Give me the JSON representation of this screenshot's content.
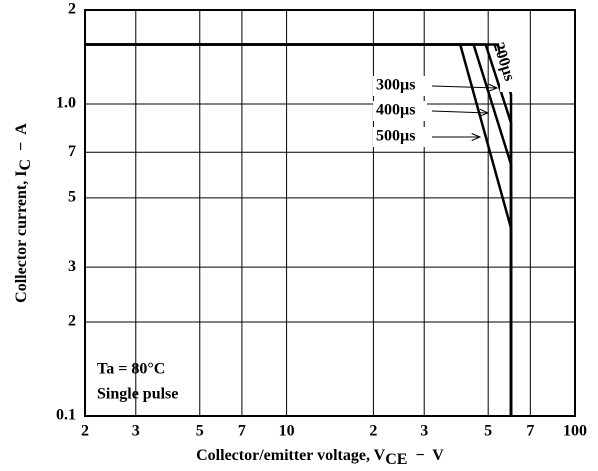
{
  "chart_data": {
    "type": "line",
    "x_label": {
      "text": "Collector/emitter voltage, V",
      "sub": "CE",
      "suffix": "  −  V"
    },
    "y_label": {
      "text": "Collector current, I",
      "sub": "C",
      "suffix": "  −  A"
    },
    "log_x": true,
    "log_y": true,
    "grid": true,
    "xlim": [
      2,
      100
    ],
    "ylim": [
      0.1,
      2
    ],
    "xticks": [
      2,
      3,
      5,
      7,
      10,
      {
        "value": 20,
        "label": "2"
      },
      {
        "value": 30,
        "label": "3"
      },
      {
        "value": 50,
        "label": "5"
      },
      {
        "value": 70,
        "label": "7"
      },
      100
    ],
    "yticks": [
      0.1,
      {
        "value": 0.2,
        "label": "2"
      },
      {
        "value": 0.3,
        "label": "3"
      },
      {
        "value": 0.5,
        "label": "5"
      },
      {
        "value": 0.7,
        "label": "7"
      },
      {
        "value": 1.0,
        "label": "1.0"
      },
      2
    ],
    "series": [
      {
        "name": "200µs",
        "color": "#000000",
        "x": [
          2,
          54,
          60,
          60
        ],
        "values": [
          1.55,
          1.55,
          1.07,
          0.1
        ]
      },
      {
        "name": "300µs",
        "color": "#000000",
        "x": [
          2,
          49,
          60,
          60
        ],
        "values": [
          1.55,
          1.55,
          0.87,
          0.1
        ]
      },
      {
        "name": "400µs",
        "color": "#000000",
        "x": [
          2,
          44.5,
          60,
          60
        ],
        "values": [
          1.55,
          1.55,
          0.64,
          0.1
        ]
      },
      {
        "name": "500µs",
        "color": "#000000",
        "x": [
          2,
          40,
          60,
          60
        ],
        "values": [
          1.55,
          1.55,
          0.4,
          0.1
        ]
      }
    ],
    "annotations": [
      "Ta = 80°C",
      "Single pulse"
    ]
  }
}
